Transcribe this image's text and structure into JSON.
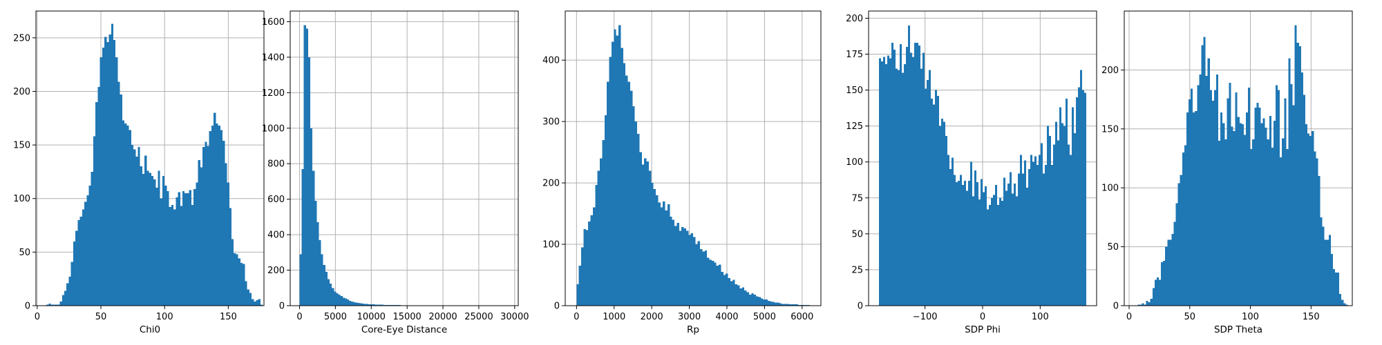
{
  "chart_data": [
    {
      "type": "bar",
      "subtype": "histogram",
      "xlabel": "Chi0",
      "ylabel": "",
      "xlim": [
        -1,
        178
      ],
      "ylim": [
        0,
        275
      ],
      "x_ticks": [
        0,
        50,
        100,
        150
      ],
      "y_ticks": [
        0,
        50,
        100,
        150,
        200,
        250
      ],
      "grid": true,
      "bin_start": 2,
      "bin_width": 1.75,
      "values": [
        0,
        0,
        0,
        1,
        2,
        1,
        1,
        1,
        1,
        4,
        10,
        14,
        21,
        27,
        41,
        60,
        70,
        80,
        83,
        90,
        97,
        103,
        112,
        125,
        158,
        190,
        204,
        232,
        241,
        251,
        246,
        253,
        263,
        248,
        232,
        209,
        197,
        173,
        170,
        168,
        164,
        150,
        146,
        139,
        148,
        130,
        123,
        140,
        126,
        124,
        121,
        118,
        110,
        126,
        100,
        121,
        112,
        107,
        92,
        94,
        90,
        101,
        106,
        93,
        107,
        105,
        105,
        108,
        94,
        109,
        115,
        136,
        129,
        148,
        153,
        149,
        163,
        168,
        180,
        170,
        168,
        164,
        154,
        133,
        115,
        91,
        62,
        49,
        48,
        44,
        40,
        39,
        23,
        15,
        12,
        6,
        4,
        5,
        6,
        1
      ]
    },
    {
      "type": "bar",
      "subtype": "histogram",
      "xlabel": "Core-Eye Distance",
      "ylabel": "",
      "xlim": [
        -1300,
        30500
      ],
      "ylim": [
        0,
        1660
      ],
      "x_ticks": [
        0,
        5000,
        10000,
        15000,
        20000,
        25000,
        30000
      ],
      "y_ticks": [
        0,
        200,
        400,
        600,
        800,
        1000,
        1200,
        1400,
        1600
      ],
      "grid": true,
      "bin_start": 0,
      "bin_width": 300,
      "values": [
        290,
        770,
        1580,
        1560,
        1400,
        1000,
        760,
        590,
        470,
        370,
        290,
        230,
        190,
        150,
        125,
        100,
        80,
        70,
        62,
        55,
        45,
        40,
        35,
        28,
        24,
        20,
        18,
        15,
        13,
        11,
        10,
        9,
        8,
        8,
        7,
        6,
        6,
        5,
        5,
        4,
        4,
        4,
        3,
        3,
        3,
        3,
        3,
        2,
        2,
        2,
        2,
        2,
        2,
        2,
        2,
        2,
        1,
        1,
        1,
        1,
        1,
        1,
        1,
        1,
        1,
        1,
        1,
        1,
        1,
        1,
        1,
        1,
        1,
        1,
        1,
        1,
        1,
        1,
        1,
        1,
        1,
        0,
        1,
        0,
        1,
        0,
        1,
        0,
        1,
        0,
        0,
        1,
        0,
        0,
        0,
        0,
        1
      ]
    },
    {
      "type": "bar",
      "subtype": "histogram",
      "xlabel": "Rp",
      "ylabel": "",
      "xlim": [
        -300,
        6500
      ],
      "ylim": [
        0,
        480
      ],
      "x_ticks": [
        0,
        1000,
        2000,
        3000,
        4000,
        5000,
        6000
      ],
      "y_ticks": [
        0,
        100,
        200,
        300,
        400
      ],
      "grid": true,
      "bin_start": 0,
      "bin_width": 62,
      "values": [
        35,
        65,
        95,
        125,
        123,
        137,
        147,
        160,
        197,
        220,
        240,
        270,
        310,
        365,
        405,
        430,
        450,
        440,
        457,
        420,
        395,
        375,
        365,
        350,
        325,
        300,
        280,
        250,
        230,
        240,
        235,
        220,
        200,
        190,
        180,
        168,
        160,
        170,
        155,
        165,
        145,
        140,
        130,
        135,
        122,
        128,
        126,
        122,
        115,
        118,
        112,
        100,
        105,
        92,
        88,
        90,
        78,
        75,
        73,
        70,
        65,
        67,
        55,
        50,
        52,
        45,
        40,
        42,
        35,
        33,
        28,
        30,
        25,
        22,
        18,
        20,
        18,
        15,
        14,
        12,
        10,
        10,
        8,
        7,
        6,
        5,
        5,
        4,
        3,
        3,
        3,
        2,
        2,
        2,
        2,
        1,
        1,
        1,
        1,
        1
      ]
    },
    {
      "type": "bar",
      "subtype": "histogram",
      "xlabel": "SDP Phi",
      "ylabel": "",
      "xlim": [
        -198,
        198
      ],
      "ylim": [
        0,
        205
      ],
      "x_ticks": [
        -100,
        0,
        100
      ],
      "y_ticks": [
        0,
        25,
        50,
        75,
        100,
        125,
        150,
        175,
        200
      ],
      "grid": true,
      "bin_start": -180,
      "bin_width": 3.6,
      "values": [
        172,
        170,
        173,
        168,
        174,
        172,
        183,
        178,
        165,
        164,
        182,
        162,
        168,
        180,
        195,
        176,
        173,
        183,
        183,
        181,
        165,
        176,
        151,
        157,
        164,
        144,
        140,
        150,
        146,
        125,
        130,
        128,
        118,
        105,
        95,
        103,
        91,
        86,
        87,
        91,
        84,
        87,
        80,
        87,
        100,
        76,
        94,
        86,
        74,
        88,
        79,
        83,
        67,
        70,
        75,
        77,
        84,
        70,
        75,
        73,
        89,
        80,
        85,
        93,
        78,
        85,
        76,
        92,
        105,
        92,
        101,
        82,
        95,
        105,
        100,
        104,
        98,
        105,
        113,
        92,
        98,
        125,
        118,
        98,
        112,
        128,
        115,
        138,
        127,
        125,
        144,
        112,
        105,
        138,
        120,
        145,
        152,
        164,
        150,
        148
      ]
    },
    {
      "type": "bar",
      "subtype": "histogram",
      "xlabel": "SDP Theta",
      "ylabel": "",
      "xlim": [
        -4,
        184
      ],
      "ylim": [
        0,
        250
      ],
      "x_ticks": [
        0,
        50,
        100,
        150
      ],
      "y_ticks": [
        0,
        50,
        100,
        150,
        200
      ],
      "grid": true,
      "bin_start": 0,
      "bin_width": 1.75,
      "values": [
        0,
        0,
        0,
        0,
        1,
        1,
        2,
        1,
        4,
        3,
        6,
        15,
        22,
        24,
        22,
        37,
        38,
        50,
        56,
        56,
        61,
        71,
        87,
        104,
        111,
        130,
        136,
        164,
        175,
        184,
        164,
        165,
        187,
        196,
        221,
        228,
        195,
        210,
        183,
        174,
        183,
        196,
        140,
        164,
        155,
        141,
        176,
        189,
        152,
        148,
        181,
        160,
        155,
        154,
        145,
        164,
        185,
        133,
        141,
        168,
        172,
        168,
        155,
        159,
        151,
        141,
        161,
        134,
        157,
        187,
        183,
        126,
        142,
        176,
        133,
        210,
        188,
        170,
        238,
        223,
        220,
        198,
        179,
        154,
        146,
        144,
        148,
        131,
        125,
        110,
        75,
        67,
        56,
        56,
        60,
        44,
        31,
        28,
        28,
        10,
        5,
        2,
        1,
        0
      ]
    }
  ],
  "colors": {
    "bar": "#1f77b4",
    "grid": "#b0b0b0",
    "axis": "#000000"
  }
}
